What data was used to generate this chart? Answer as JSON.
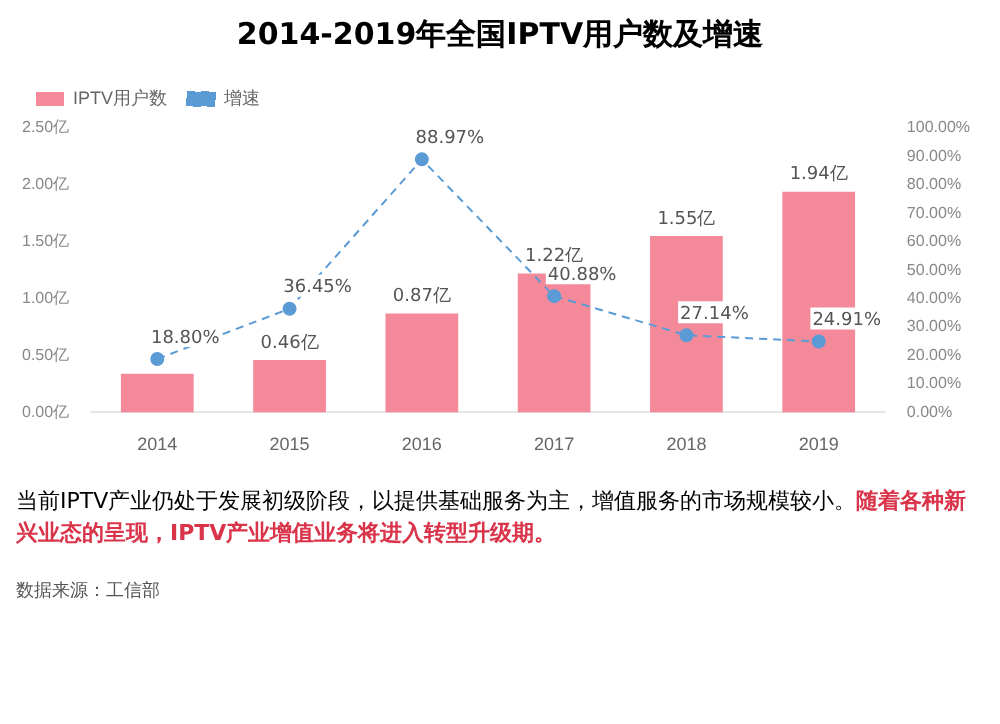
{
  "chart_data": {
    "type": "bar",
    "title": "2014-2019年全国IPTV用户数及增速",
    "categories": [
      "2014",
      "2015",
      "2016",
      "2017",
      "2018",
      "2019"
    ],
    "series": [
      {
        "name": "IPTV用户数",
        "color": "#f4899a",
        "values": [
          0.34,
          0.46,
          0.87,
          1.22,
          1.55,
          1.94
        ],
        "value_labels": [
          null,
          "0.46亿",
          "0.87亿",
          "1.22亿",
          "1.55亿",
          "1.94亿"
        ]
      },
      {
        "name": "增速",
        "type": "line",
        "axis": "y2",
        "color": "#5b9bd5",
        "line_style": "dashed",
        "marker": "circle",
        "values": [
          18.8,
          36.45,
          88.97,
          40.88,
          27.14,
          24.91
        ],
        "value_labels": [
          "18.80%",
          "36.45%",
          "88.97%",
          "40.88%",
          "27.14%",
          "24.91%"
        ]
      }
    ],
    "ylim": [
      0,
      2.5
    ],
    "yticks": [
      {
        "value": 0,
        "label": "0.00亿"
      },
      {
        "value": 0.5,
        "label": "0.50亿"
      },
      {
        "value": 1,
        "label": "1.00亿"
      },
      {
        "value": 1.5,
        "label": "1.50亿"
      },
      {
        "value": 2,
        "label": "2.00亿"
      },
      {
        "value": 2.5,
        "label": "2.50亿"
      }
    ],
    "y2lim": [
      0,
      100
    ],
    "y2ticks": [
      {
        "value": 0,
        "label": "0.00%"
      },
      {
        "value": 10,
        "label": "10.00%"
      },
      {
        "value": 20,
        "label": "20.00%"
      },
      {
        "value": 30,
        "label": "30.00%"
      },
      {
        "value": 40,
        "label": "40.00%"
      },
      {
        "value": 50,
        "label": "50.00%"
      },
      {
        "value": 60,
        "label": "60.00%"
      },
      {
        "value": 70,
        "label": "70.00%"
      },
      {
        "value": 80,
        "label": "80.00%"
      },
      {
        "value": 90,
        "label": "90.00%"
      },
      {
        "value": 100,
        "label": "100.00%"
      }
    ],
    "grid": false,
    "legend": "top left",
    "annotations": [
      "当前IPTV产业仍处于发展初级阶段，以提供基础服务为主，增值服务的市场规模较小。",
      "随着各种新兴业态的呈现，IPTV产业增值业务将进入转型升级期。",
      "数据来源：工信部"
    ]
  }
}
